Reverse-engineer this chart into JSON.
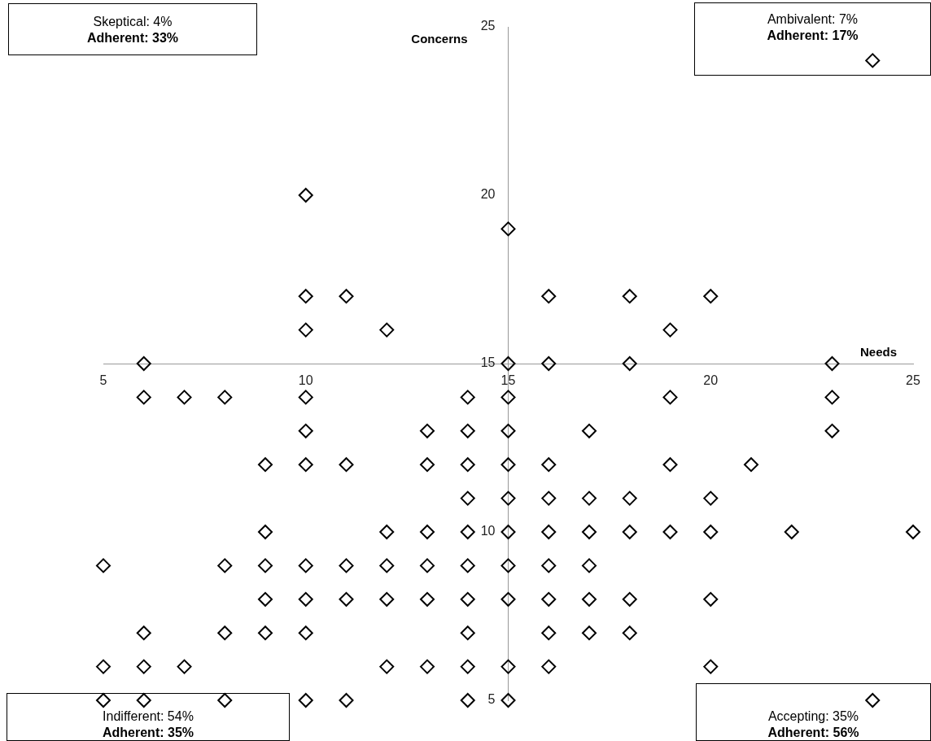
{
  "chart_data": {
    "type": "scatter",
    "xlabel": "Needs",
    "ylabel": "Concerns",
    "xlim": [
      5,
      25
    ],
    "ylim": [
      5,
      25
    ],
    "xticks": [
      5,
      10,
      15,
      20,
      25
    ],
    "yticks": [
      5,
      10,
      15,
      20,
      25
    ],
    "grid": false,
    "legend": false,
    "marker": "diamond",
    "annotations": [
      "Skeptical: 4%\nAdherent: 33%",
      "Ambivalent: 7%\nAdherent: 17%",
      "Indifferent: 54%\nAdherent: 35%",
      "Accepting: 35%\nAdherent: 56%"
    ],
    "series": [
      {
        "color": "#000000",
        "x": [
          24,
          10,
          15,
          10,
          11,
          16,
          18,
          20,
          10,
          12,
          19,
          6,
          15,
          16,
          18,
          23,
          6,
          7,
          8,
          10,
          14,
          15,
          19,
          23,
          10,
          13,
          14,
          15,
          17,
          23,
          9,
          10,
          11,
          13,
          14,
          15,
          16,
          19,
          21,
          14,
          15,
          16,
          17,
          18,
          20,
          9,
          12,
          13,
          14,
          15,
          16,
          17,
          18,
          19,
          20,
          22,
          25,
          5,
          8,
          9,
          10,
          11,
          12,
          13,
          14,
          15,
          16,
          17,
          9,
          10,
          11,
          12,
          13,
          14,
          15,
          16,
          17,
          18,
          20,
          6,
          8,
          9,
          10,
          14,
          16,
          17,
          18,
          5,
          6,
          7,
          12,
          13,
          14,
          15,
          16,
          20,
          5,
          6,
          8,
          10,
          11,
          14,
          15,
          24
        ],
        "values": [
          24,
          20,
          19,
          17,
          17,
          17,
          17,
          17,
          16,
          16,
          16,
          15,
          15,
          15,
          15,
          15,
          14,
          14,
          14,
          14,
          14,
          14,
          14,
          14,
          13,
          13,
          13,
          13,
          13,
          13,
          12,
          12,
          12,
          12,
          12,
          12,
          12,
          12,
          12,
          11,
          11,
          11,
          11,
          11,
          11,
          10,
          10,
          10,
          10,
          10,
          10,
          10,
          10,
          10,
          10,
          10,
          10,
          9,
          9,
          9,
          9,
          9,
          9,
          9,
          9,
          9,
          9,
          9,
          8,
          8,
          8,
          8,
          8,
          8,
          8,
          8,
          8,
          8,
          8,
          7,
          7,
          7,
          7,
          7,
          7,
          7,
          7,
          6,
          6,
          6,
          6,
          6,
          6,
          6,
          6,
          6,
          5,
          5,
          5,
          5,
          5,
          5,
          5,
          5
        ]
      }
    ]
  }
}
